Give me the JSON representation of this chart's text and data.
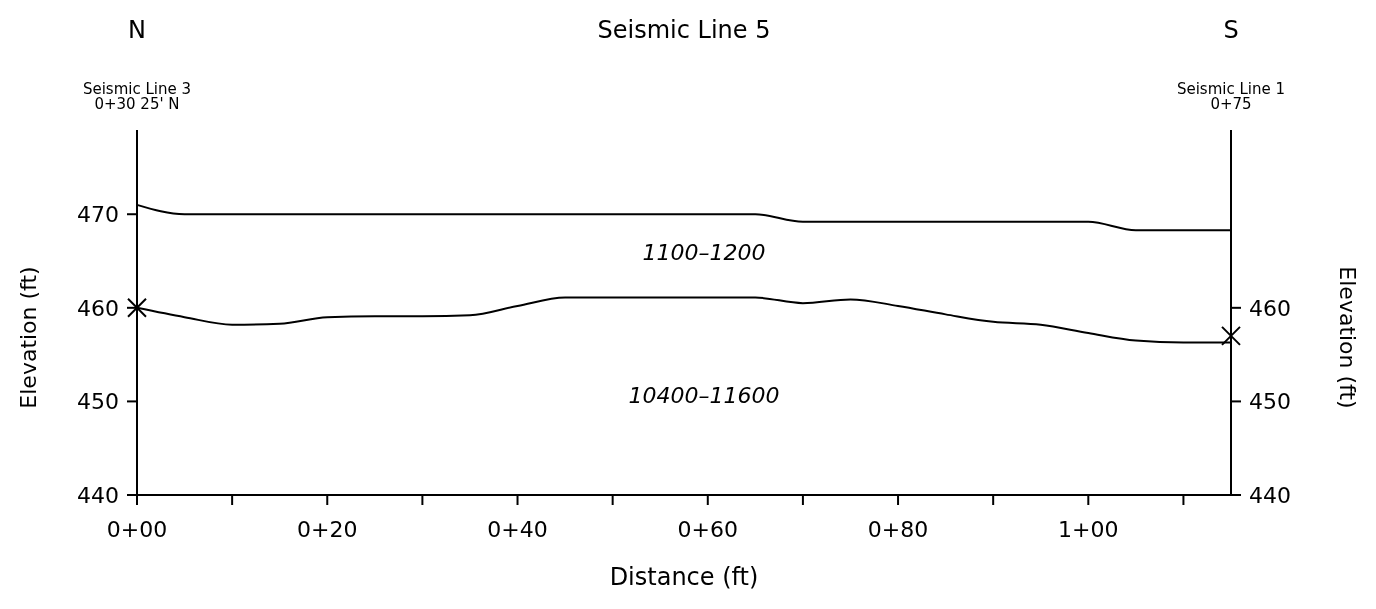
{
  "chart_data": {
    "type": "line",
    "title": "Seismic Line 5",
    "xlabel": "Distance (ft)",
    "ylabel": "Elevation (ft)",
    "y2label": "Elevation (ft)",
    "categories": [
      "0+00",
      null,
      null,
      null,
      "0+20",
      null,
      null,
      null,
      "0+40",
      null,
      null,
      null,
      "0+60",
      null,
      null,
      null,
      "0+80",
      null,
      null,
      null,
      "1+00",
      null,
      null,
      null
    ],
    "ylim": [
      440,
      479
    ],
    "yticks": [
      440,
      450,
      460,
      470
    ],
    "y2lim": [
      440,
      479
    ],
    "y2ticks": [
      440,
      450,
      460
    ],
    "grid": false,
    "line_style": "solid",
    "series": [
      {
        "color": "#000000",
        "marker": "none",
        "values": [
          471,
          470,
          470,
          470,
          470,
          470,
          470,
          470,
          470,
          470,
          470,
          470,
          470,
          470,
          469.2,
          469.2,
          469.2,
          469.2,
          469.2,
          469.2,
          469.2,
          468.3,
          468.3,
          468.3
        ]
      },
      {
        "color": "#000000",
        "marker": "none",
        "values": [
          460,
          459,
          458.2,
          458.3,
          459,
          459.1,
          459.1,
          459.2,
          460.2,
          461.1,
          461.1,
          461.1,
          461.1,
          461.1,
          460.5,
          460.9,
          460.2,
          459.3,
          458.5,
          458.2,
          457.3,
          456.5,
          456.3,
          456.3
        ]
      },
      {
        "type": "scatter",
        "color": "#000000",
        "marker": "cross",
        "values": [
          460,
          null,
          null,
          null,
          null,
          null,
          null,
          null,
          null,
          null,
          null,
          null,
          null,
          null,
          null,
          null,
          null,
          null,
          null,
          null,
          null,
          null,
          null,
          null
        ]
      },
      {
        "type": "scatter",
        "color": "#000000",
        "marker": "cross",
        "values": [
          null,
          null,
          null,
          null,
          null,
          null,
          null,
          null,
          null,
          null,
          null,
          null,
          null,
          null,
          null,
          null,
          null,
          null,
          null,
          null,
          null,
          null,
          null,
          457
        ]
      }
    ],
    "annotations": [
      "N",
      "S",
      "Seismic Line 3\n0+30 25' N",
      "Seismic Line 1\n0+75",
      "1100–1200",
      "10400–11600"
    ]
  }
}
